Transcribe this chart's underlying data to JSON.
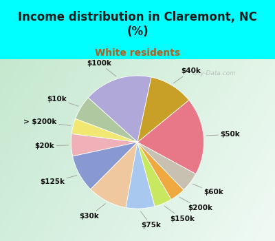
{
  "title": "Income distribution in Claremont, NC\n(%)",
  "subtitle": "White residents",
  "title_color": "#1a1a1a",
  "subtitle_color": "#b06020",
  "bg_cyan": "#00ffff",
  "bg_chart_color": "#c8e8d8",
  "watermark": "City-Data.com",
  "labels": [
    "$100k",
    "$10k",
    "> $200k",
    "$20k",
    "$125k",
    "$30k",
    "$75k",
    "$150k",
    "$200k",
    "$60k",
    "$50k",
    "$40k"
  ],
  "values": [
    15.5,
    5.5,
    3.5,
    5.0,
    8.5,
    9.0,
    6.5,
    4.0,
    3.5,
    4.5,
    17.5,
    10.0
  ],
  "colors": [
    "#b0a8d8",
    "#b0c8a0",
    "#f0e870",
    "#f0b0b8",
    "#8898d0",
    "#f0c8a0",
    "#a8c8f0",
    "#c8e860",
    "#f0a840",
    "#c8c0b0",
    "#e87888",
    "#c8a028"
  ],
  "startangle": 78,
  "label_fontsize": 7.5,
  "label_color": "#111111"
}
